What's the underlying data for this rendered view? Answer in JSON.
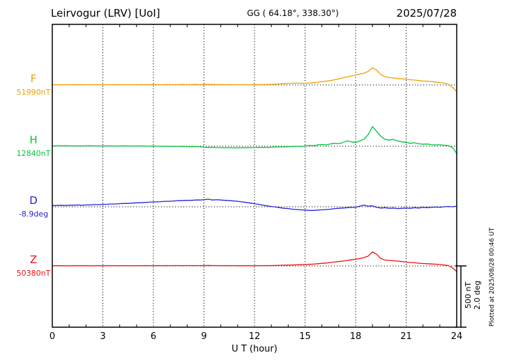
{
  "header": {
    "station": "Leirvogur (LRV)  [UoI]",
    "gg": "GG ( 64.18°, 338.30°)",
    "date": "2025/07/28"
  },
  "xaxis": {
    "label": "U T (hour)",
    "ticks": [
      0,
      3,
      6,
      9,
      12,
      15,
      18,
      21,
      24
    ]
  },
  "scale_bar": {
    "nt": "500 nT",
    "deg": "2.0 deg"
  },
  "footer_note": "Plotted at 2025/08/28 00:46 UT",
  "components": [
    {
      "label": "F",
      "value": "51990nT",
      "color": "#efa000"
    },
    {
      "label": "H",
      "value": "12840nT",
      "color": "#00c43c"
    },
    {
      "label": "D",
      "value": "-8.9deg",
      "color": "#2222dd"
    },
    {
      "label": "Z",
      "value": "50380nT",
      "color": "#ee1111"
    }
  ],
  "chart_data": {
    "type": "line",
    "title": "Leirvogur (LRV) magnetogram 2025/07/28",
    "xlabel": "U T (hour)",
    "x_range": [
      0,
      24
    ],
    "x_ticks": [
      0,
      3,
      6,
      9,
      12,
      15,
      18,
      21,
      24
    ],
    "grid": "vertical-dotted-every-3h",
    "x_start": 0,
    "x_step": 0.25,
    "values_are": "offsets from each component baseline",
    "scale": {
      "span_nT": 500,
      "span_deg": 2.0
    },
    "series": [
      {
        "name": "F",
        "unit": "nT",
        "baseline_value": "51990nT",
        "color": "#efa000",
        "values": [
          2,
          1,
          2,
          2,
          1,
          2,
          3,
          2,
          2,
          1,
          2,
          2,
          1,
          2,
          2,
          3,
          2,
          2,
          1,
          2,
          2,
          3,
          2,
          2,
          3,
          2,
          2,
          3,
          3,
          2,
          3,
          4,
          3,
          3,
          4,
          3,
          4,
          5,
          4,
          3,
          3,
          2,
          3,
          2,
          2,
          1,
          2,
          1,
          2,
          2,
          3,
          4,
          5,
          6,
          8,
          10,
          12,
          14,
          15,
          14,
          13,
          15,
          18,
          22,
          26,
          30,
          36,
          42,
          50,
          58,
          66,
          72,
          80,
          88,
          96,
          110,
          140,
          120,
          84,
          66,
          60,
          56,
          52,
          50,
          46,
          42,
          40,
          36,
          32,
          30,
          28,
          24,
          20,
          14,
          6,
          -20,
          -55
        ]
      },
      {
        "name": "H",
        "unit": "nT",
        "baseline_value": "12840nT",
        "color": "#00c43c",
        "values": [
          3,
          2,
          3,
          4,
          3,
          2,
          3,
          2,
          3,
          4,
          3,
          2,
          2,
          3,
          2,
          1,
          2,
          3,
          2,
          1,
          2,
          2,
          1,
          0,
          1,
          0,
          -1,
          0,
          -1,
          -2,
          -1,
          -2,
          -3,
          -4,
          -3,
          -5,
          -8,
          -10,
          -9,
          -11,
          -12,
          -13,
          -12,
          -14,
          -13,
          -12,
          -13,
          -12,
          -11,
          -10,
          -9,
          -10,
          -8,
          -6,
          -5,
          -6,
          -4,
          -2,
          0,
          -3,
          2,
          6,
          4,
          10,
          14,
          10,
          18,
          24,
          20,
          30,
          44,
          36,
          30,
          42,
          58,
          95,
          160,
          120,
          80,
          55,
          50,
          55,
          42,
          36,
          30,
          24,
          28,
          20,
          16,
          18,
          12,
          10,
          12,
          8,
          4,
          -10,
          -60
        ]
      },
      {
        "name": "D",
        "unit": "deg",
        "baseline_value": "-8.9deg",
        "color": "#2222dd",
        "values": [
          0.04,
          0.04,
          0.05,
          0.04,
          0.05,
          0.05,
          0.06,
          0.05,
          0.06,
          0.06,
          0.07,
          0.07,
          0.08,
          0.08,
          0.09,
          0.09,
          0.1,
          0.11,
          0.11,
          0.12,
          0.13,
          0.13,
          0.14,
          0.15,
          0.16,
          0.16,
          0.17,
          0.18,
          0.18,
          0.19,
          0.2,
          0.2,
          0.21,
          0.21,
          0.22,
          0.22,
          0.23,
          0.25,
          0.22,
          0.23,
          0.22,
          0.21,
          0.2,
          0.19,
          0.18,
          0.16,
          0.14,
          0.12,
          0.1,
          0.08,
          0.05,
          0.03,
          0.01,
          -0.01,
          -0.03,
          -0.05,
          -0.06,
          -0.08,
          -0.09,
          -0.1,
          -0.11,
          -0.12,
          -0.12,
          -0.11,
          -0.1,
          -0.09,
          -0.08,
          -0.06,
          -0.05,
          -0.04,
          -0.03,
          -0.02,
          -0.02,
          0.02,
          0.05,
          0.02,
          0.03,
          -0.02,
          -0.04,
          -0.03,
          -0.05,
          -0.04,
          -0.06,
          -0.05,
          -0.04,
          -0.05,
          -0.03,
          -0.04,
          -0.02,
          -0.03,
          -0.02,
          -0.01,
          -0.02,
          0.0,
          0.01,
          0.0,
          0.02
        ]
      },
      {
        "name": "Z",
        "unit": "nT",
        "baseline_value": "50380nT",
        "color": "#ee1111",
        "values": [
          1,
          1,
          2,
          1,
          1,
          2,
          1,
          1,
          2,
          1,
          1,
          2,
          1,
          1,
          2,
          2,
          1,
          2,
          2,
          1,
          2,
          2,
          3,
          2,
          2,
          3,
          2,
          3,
          2,
          3,
          3,
          2,
          3,
          3,
          2,
          3,
          3,
          4,
          3,
          3,
          2,
          3,
          2,
          2,
          1,
          2,
          1,
          1,
          1,
          2,
          2,
          3,
          3,
          4,
          5,
          6,
          7,
          8,
          9,
          10,
          11,
          13,
          15,
          18,
          21,
          24,
          28,
          32,
          36,
          40,
          45,
          50,
          55,
          60,
          68,
          80,
          115,
          95,
          60,
          48,
          45,
          42,
          40,
          36,
          32,
          28,
          26,
          22,
          20,
          18,
          16,
          14,
          12,
          8,
          2,
          -15,
          -45
        ]
      }
    ]
  }
}
